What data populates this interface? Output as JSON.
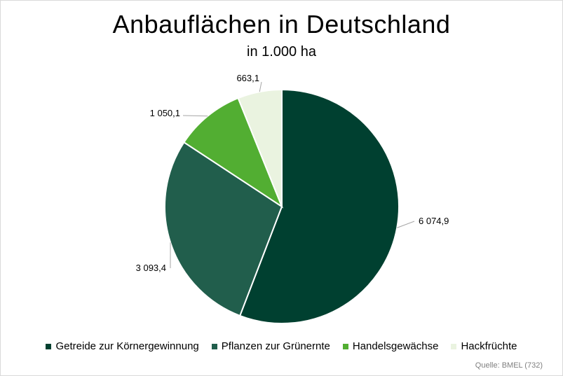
{
  "chart_data": {
    "type": "pie",
    "title": "Anbauflächen in Deutschland",
    "subtitle": "in 1.000 ha",
    "categories": [
      "Getreide zur Körnergewinnung",
      "Pflanzen zur Grünernte",
      "Handelsgewächse",
      "Hackfrüchte"
    ],
    "values": [
      6074.9,
      3093.4,
      1050.1,
      663.1
    ],
    "value_labels": [
      "6 074,9",
      "3 093,4",
      "1 050,1",
      "663,1"
    ],
    "colors": [
      "#004030",
      "#215e4c",
      "#52ae32",
      "#eaf3e0"
    ],
    "legend_position": "bottom",
    "start": "top, clockwise"
  },
  "source": "Quelle: BMEL (732)"
}
